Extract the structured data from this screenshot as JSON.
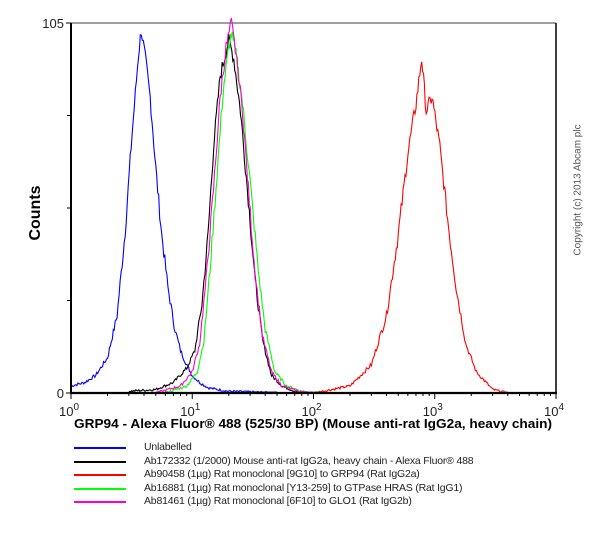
{
  "chart_data": {
    "type": "line",
    "title": "",
    "xlabel": "GRP94 - Alexa Fluor® 488 (525/30 BP) (Mouse anti-rat IgG2a, heavy chain)",
    "ylabel": "Counts",
    "xscale": "log",
    "xlim": [
      1,
      10000
    ],
    "ylim": [
      0,
      105
    ],
    "x_ticks": [
      {
        "value": 1,
        "base": "10",
        "exp": "0"
      },
      {
        "value": 10,
        "base": "10",
        "exp": "1"
      },
      {
        "value": 100,
        "base": "10",
        "exp": "2"
      },
      {
        "value": 1000,
        "base": "10",
        "exp": "3"
      },
      {
        "value": 10000,
        "base": "10",
        "exp": "4"
      }
    ],
    "y_tick_labels": [
      "0",
      "105"
    ],
    "y_minor_ticks": [
      26.25,
      52.5,
      78.75
    ],
    "grid": false,
    "legend_position": "bottom",
    "series": [
      {
        "name": "Unlabelled",
        "color": "#0000ff",
        "peak_x": 3.8,
        "peak_y": 103,
        "x": [
          1.0,
          1.3,
          1.6,
          2.0,
          2.4,
          2.8,
          3.2,
          3.6,
          3.8,
          4.1,
          4.5,
          5.0,
          5.6,
          6.3,
          7.1,
          8.0,
          9.0,
          10.0,
          11.5,
          13.5,
          16,
          20,
          30,
          50
        ],
        "y": [
          2,
          3,
          5,
          10,
          22,
          46,
          74,
          96,
          103,
          95,
          84,
          64,
          45,
          30,
          19,
          12,
          8,
          5,
          3,
          1.5,
          1,
          0.5,
          0.3,
          0
        ]
      },
      {
        "name": "Ab172332 (1/2000) Mouse anti-rat IgG2a, heavy chain - Alexa Fluor® 488",
        "color": "#000000",
        "peak_x": 20,
        "peak_y": 100,
        "x": [
          3,
          5,
          7,
          9,
          10.5,
          12,
          13.5,
          15,
          17,
          19,
          20,
          22,
          25,
          29,
          33,
          38,
          45,
          55,
          70,
          100
        ],
        "y": [
          0.5,
          1,
          3,
          7,
          12,
          25,
          45,
          70,
          90,
          97,
          100,
          95,
          80,
          55,
          32,
          15,
          5,
          2,
          0.5,
          0
        ]
      },
      {
        "name": "Ab90458 (1µg) Rat monoclonal [9G10] to GRP94 (Rat IgG2a)",
        "color": "#ff0000",
        "peak_x": 780,
        "peak_y": 95,
        "x": [
          100,
          200,
          300,
          400,
          500,
          600,
          700,
          780,
          850,
          950,
          1100,
          1300,
          1500,
          1800,
          2200,
          3000,
          4000
        ],
        "y": [
          0,
          2,
          8,
          22,
          45,
          68,
          82,
          95,
          80,
          84,
          70,
          47,
          30,
          14,
          6,
          1,
          0
        ]
      },
      {
        "name": "Ab16881 (1µg) Rat monoclonal [Y13-259] to GTPase HRAS (Rat IgG1)",
        "color": "#00ff00",
        "peak_x": 21,
        "peak_y": 102,
        "x": [
          6,
          9,
          11,
          12.5,
          14,
          16,
          18,
          20,
          21,
          23,
          26,
          30,
          35,
          40,
          48,
          60,
          80,
          110
        ],
        "y": [
          0,
          2,
          6,
          15,
          35,
          62,
          86,
          98,
          102,
          96,
          82,
          60,
          35,
          18,
          6,
          2,
          0.5,
          0
        ]
      },
      {
        "name": "Ab81461 (1µg) Rat monoclonal [6F10] to GLO1 (Rat IgG2b)",
        "color": "#ff00cc",
        "peak_x": 21,
        "peak_y": 105,
        "x": [
          5,
          8,
          10,
          11.5,
          13,
          15,
          17,
          19,
          21,
          23,
          26,
          29,
          33,
          38,
          45,
          55,
          75,
          100
        ],
        "y": [
          0,
          2,
          6,
          14,
          32,
          58,
          84,
          98,
          105,
          96,
          80,
          58,
          34,
          16,
          6,
          2,
          0.5,
          0
        ]
      }
    ]
  },
  "copyright": "Copyright (c) 2013 Abcam plc"
}
